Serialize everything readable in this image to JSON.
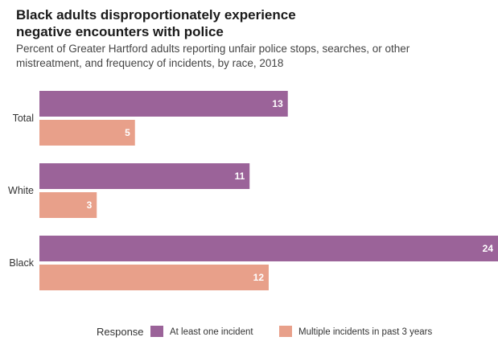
{
  "chart_data": {
    "type": "bar",
    "orientation": "horizontal",
    "title": "Black adults disproportionately experience negative encounters with police",
    "title_lines": [
      "Black adults disproportionately experience",
      "negative encounters with police"
    ],
    "subtitle": "Percent of Greater Hartford adults reporting unfair police stops, searches, or other mistreatment, and frequency of incidents, by race, 2018",
    "subtitle_lines": [
      "Percent of Greater Hartford adults reporting unfair police stops, searches, or other",
      "mistreatment, and frequency of incidents, by race, 2018"
    ],
    "categories": [
      "Total",
      "White",
      "Black"
    ],
    "series": [
      {
        "name": "At least one incident",
        "color": "#9b6399",
        "values": [
          13,
          11,
          24
        ]
      },
      {
        "name": "Multiple incidents in past 3 years",
        "color": "#e8a08a",
        "values": [
          5,
          3,
          12
        ]
      }
    ],
    "xlim": [
      0,
      24
    ],
    "legend_title": "Response",
    "legend_position": "bottom",
    "grid": false,
    "data_labels": true
  }
}
